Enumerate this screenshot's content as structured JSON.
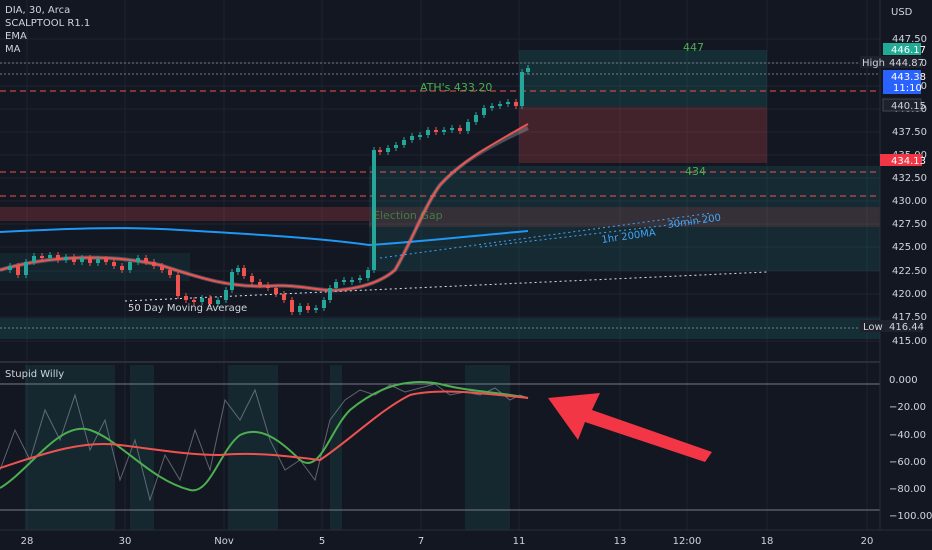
{
  "legend": {
    "symbol": "DIA, 30, Arca",
    "indicators": [
      "SCALPTOOL R1.1",
      "EMA",
      "MA"
    ]
  },
  "currency": "USD",
  "price_axis": {
    "ticks": [
      "447.50",
      "445.00",
      "442.50",
      "440.00",
      "437.50",
      "435.00",
      "432.50",
      "430.00",
      "427.50",
      "425.00",
      "422.50",
      "420.00",
      "417.50",
      "415.00"
    ],
    "tags": [
      {
        "label": "",
        "value": "446.17",
        "color": "#22ab94"
      },
      {
        "label": "High",
        "value": "444.87",
        "color": "#1e222d"
      },
      {
        "label": "",
        "value": "443.38",
        "color": "#2962ff"
      },
      {
        "label": "",
        "value": "11:10",
        "color": "#2962ff"
      },
      {
        "label": "",
        "value": "440.15",
        "color": "#1e222d"
      },
      {
        "label": "",
        "value": "434.13",
        "color": "#f23645"
      },
      {
        "label": "Low",
        "value": "416.44",
        "color": "#1e222d"
      }
    ]
  },
  "osc_axis": {
    "ticks": [
      "0.000",
      "−20.00",
      "−40.00",
      "−60.00",
      "−80.00",
      "−100.00"
    ]
  },
  "time_axis": {
    "ticks": [
      "28",
      "30",
      "Nov",
      "5",
      "7",
      "11",
      "13",
      "12:00",
      "18",
      "20"
    ]
  },
  "annotations": {
    "ath": "ATH's 433.20",
    "target_high": "447",
    "target_low": "434",
    "gap": "Election Gap",
    "ma50": "50 Day Moving Average",
    "ma200_1h": "1hr 200MA",
    "ma200_30m": "30min 200"
  },
  "oscillator": {
    "title": "Stupid Willy"
  },
  "colors": {
    "background": "#131722",
    "up": "#26a69a",
    "down": "#ef5350",
    "accent_arrow": "#f23645"
  }
}
